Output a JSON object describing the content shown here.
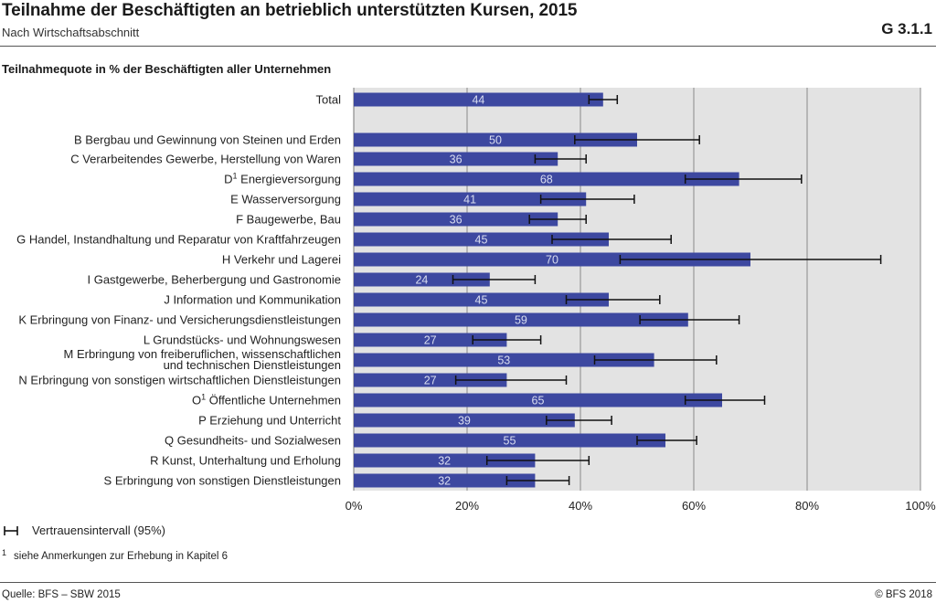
{
  "header": {
    "title": "Teilnahme der Beschäftigten an betrieblich unterstützten Kursen, 2015",
    "subtitle": "Nach Wirtschaftsabschnitt",
    "code": "G 3.1.1"
  },
  "chart_heading": "Teilnahmequote in % der Beschäftigten aller Unternehmen",
  "colors": {
    "bar": "#3d48a0",
    "plot_background": "#e3e3e3",
    "grid": "#8a8a8a",
    "bar_label": "#d8dcf0",
    "error_bar": "#111111"
  },
  "chart_data": {
    "type": "bar",
    "orientation": "horizontal",
    "title": "Teilnahmequote in % der Beschäftigten aller Unternehmen",
    "categories": [
      {
        "label": "Total",
        "sup": "",
        "value": 44,
        "ci": [
          41.5,
          46.5
        ]
      },
      {
        "label": "B Bergbau und Gewinnung von Steinen und Erden",
        "sup": "",
        "value": 50,
        "ci": [
          39,
          61
        ]
      },
      {
        "label": "C Verarbeitendes Gewerbe, Herstellung von Waren",
        "sup": "",
        "value": 36,
        "ci": [
          32,
          41
        ]
      },
      {
        "label": "D",
        "sup": "1",
        "label_rest": " Energieversorgung",
        "value": 68,
        "ci": [
          58.5,
          79
        ]
      },
      {
        "label": "E Wasserversorgung",
        "sup": "",
        "value": 41,
        "ci": [
          33,
          49.5
        ]
      },
      {
        "label": "F Baugewerbe, Bau",
        "sup": "",
        "value": 36,
        "ci": [
          31,
          41
        ]
      },
      {
        "label": "G Handel, Instandhaltung und Reparatur von Kraftfahrzeugen",
        "sup": "",
        "value": 45,
        "ci": [
          35,
          56
        ]
      },
      {
        "label": "H Verkehr und Lagerei",
        "sup": "",
        "value": 70,
        "ci": [
          47,
          93
        ]
      },
      {
        "label": "I Gastgewerbe, Beherbergung und Gastronomie",
        "sup": "",
        "value": 24,
        "ci": [
          17.5,
          32
        ]
      },
      {
        "label": "J Information und Kommunikation",
        "sup": "",
        "value": 45,
        "ci": [
          37.5,
          54
        ]
      },
      {
        "label": "K Erbringung von Finanz- und Versicherungsdienstleistungen",
        "sup": "",
        "value": 59,
        "ci": [
          50.5,
          68
        ]
      },
      {
        "label": "L Grundstücks- und Wohnungswesen",
        "sup": "",
        "value": 27,
        "ci": [
          21,
          33
        ]
      },
      {
        "label": "M Erbringung von freiberuflichen, wissenschaftlichen",
        "label2": "und technischen Dienstleistungen",
        "sup": "",
        "value": 53,
        "ci": [
          42.5,
          64
        ]
      },
      {
        "label": "N Erbringung von sonstigen wirtschaftlichen Dienstleistungen",
        "sup": "",
        "value": 27,
        "ci": [
          18,
          37.5
        ]
      },
      {
        "label": "O",
        "sup": "1",
        "label_rest": " Öffentliche Unternehmen",
        "value": 65,
        "ci": [
          58.5,
          72.5
        ]
      },
      {
        "label": "P Erziehung und Unterricht",
        "sup": "",
        "value": 39,
        "ci": [
          34,
          45.5
        ]
      },
      {
        "label": "Q Gesundheits- und Sozialwesen",
        "sup": "",
        "value": 55,
        "ci": [
          50,
          60.5
        ]
      },
      {
        "label": "R Kunst, Unterhaltung und Erholung",
        "sup": "",
        "value": 32,
        "ci": [
          23.5,
          41.5
        ]
      },
      {
        "label": "S Erbringung von sonstigen Dienstleistungen",
        "sup": "",
        "value": 32,
        "ci": [
          27,
          38
        ]
      }
    ],
    "xlim": [
      0,
      100
    ],
    "xticks": [
      "0%",
      "20%",
      "40%",
      "60%",
      "80%",
      "100%"
    ],
    "grid": true
  },
  "legend": {
    "label": "Vertrauensintervall (95%)"
  },
  "footnote": {
    "mark": "1",
    "text": "siehe Anmerkungen zur Erhebung in Kapitel 6"
  },
  "footer": {
    "source": "Quelle: BFS – SBW 2015",
    "copyright": "© BFS 2018"
  }
}
